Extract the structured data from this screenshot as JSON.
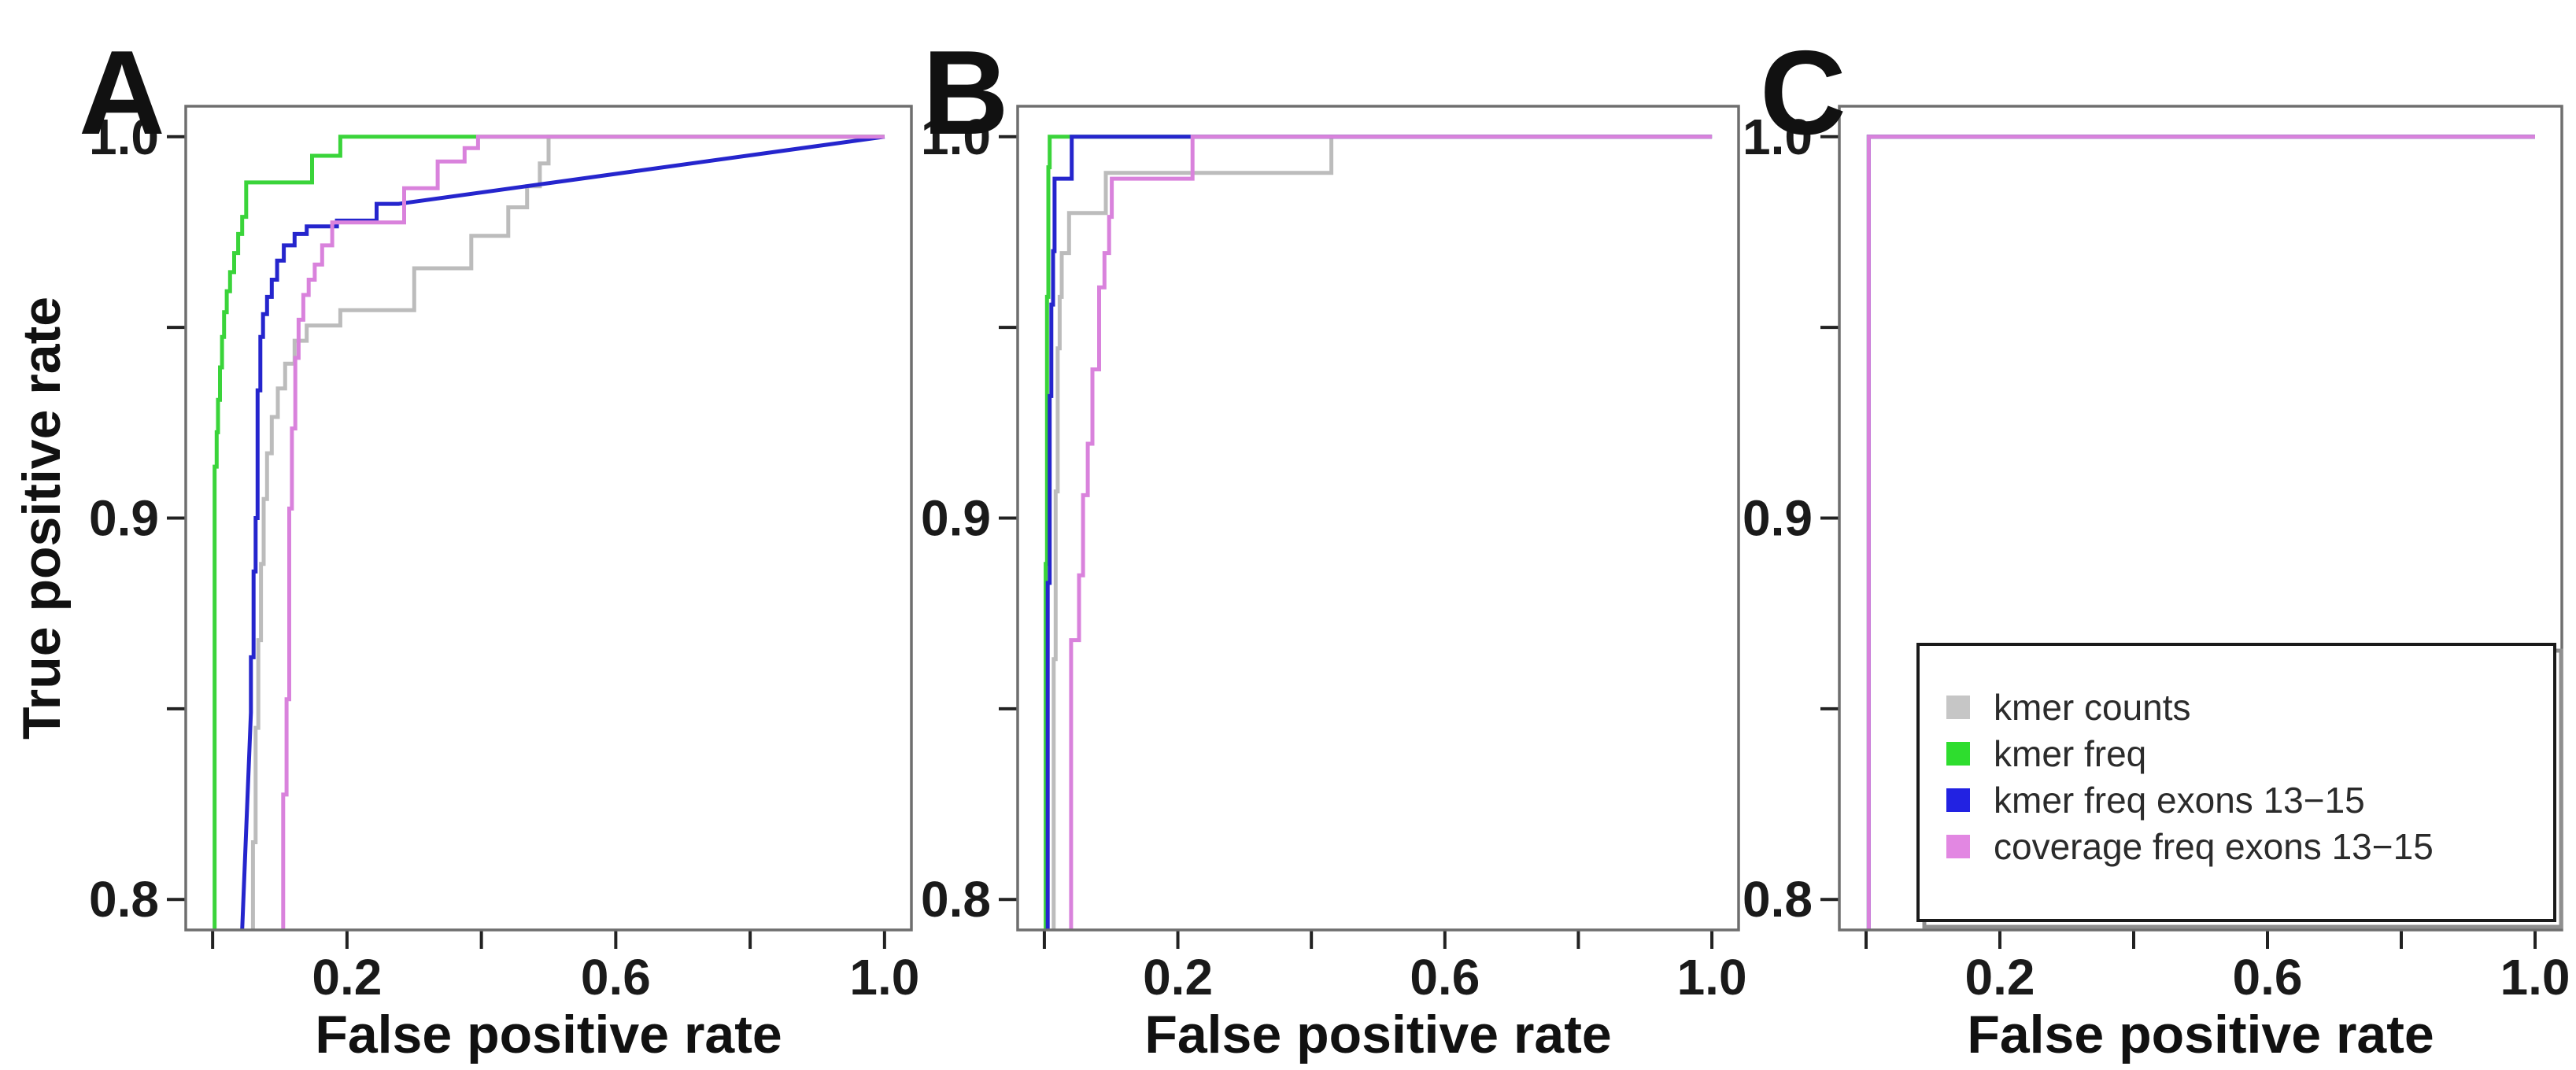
{
  "figure": {
    "x_axis_title": "False positive rate",
    "y_axis_title": "True positive rate",
    "panel_letters": [
      "A",
      "B",
      "C"
    ]
  },
  "colors": {
    "kmer_counts": "#bcbcbc",
    "kmer_freq": "#3ad43a",
    "kmer_freq_exons": "#2525cd",
    "coverage_freq_exons": "#d982dc",
    "frame": "#6e6e6e",
    "tick": "#222222",
    "text": "#111111",
    "legend_border": "#1a1a1a",
    "legend_shadow": "#8f8f8f",
    "background": "#ffffff"
  },
  "legend": {
    "position": "bottom-right-panel-C",
    "items": [
      {
        "key": "kmer_counts",
        "label": "kmer counts",
        "swatch": "#c6c6c6"
      },
      {
        "key": "kmer_freq",
        "label": "kmer freq",
        "swatch": "#2edd2e"
      },
      {
        "key": "kmer_freq_exons",
        "label": "kmer freq exons 13−15",
        "swatch": "#2222e2"
      },
      {
        "key": "coverage_freq_exons",
        "label": "coverage freq exons 13−15",
        "swatch": "#e287e2"
      }
    ]
  },
  "chart_data": [
    {
      "type": "line",
      "panel_letter": "A",
      "xlabel": "False positive rate",
      "ylabel": "True positive rate",
      "xlim": [
        0,
        1
      ],
      "ylim": [
        0.8,
        1.0
      ],
      "grid": false,
      "x_ticks": {
        "labels": [
          "0.2",
          "0.6",
          "1.0"
        ],
        "labeled_values": [
          0.2,
          0.6,
          1.0
        ],
        "minor_values": [
          0.0,
          0.4,
          0.8
        ]
      },
      "y_ticks": {
        "labels": [
          "1.0",
          "0.9",
          "0.8"
        ],
        "labeled_values": [
          1.0,
          0.9,
          0.8
        ],
        "minor_values": [
          0.95,
          0.85
        ]
      },
      "series": [
        {
          "name": "kmer counts",
          "color_key": "kmer_counts",
          "points": [
            [
              0.06,
              0.788
            ],
            [
              0.06,
              0.815
            ],
            [
              0.064,
              0.815
            ],
            [
              0.064,
              0.845
            ],
            [
              0.068,
              0.845
            ],
            [
              0.068,
              0.868
            ],
            [
              0.072,
              0.868
            ],
            [
              0.072,
              0.888
            ],
            [
              0.076,
              0.888
            ],
            [
              0.076,
              0.905
            ],
            [
              0.081,
              0.905
            ],
            [
              0.081,
              0.917
            ],
            [
              0.088,
              0.917
            ],
            [
              0.088,
              0.9265
            ],
            [
              0.097,
              0.9265
            ],
            [
              0.097,
              0.934
            ],
            [
              0.108,
              0.934
            ],
            [
              0.108,
              0.9405
            ],
            [
              0.122,
              0.9405
            ],
            [
              0.122,
              0.9465
            ],
            [
              0.14,
              0.9465
            ],
            [
              0.14,
              0.9505
            ],
            [
              0.19,
              0.9505
            ],
            [
              0.19,
              0.9545
            ],
            [
              0.3,
              0.9545
            ],
            [
              0.3,
              0.9655
            ],
            [
              0.385,
              0.9655
            ],
            [
              0.385,
              0.974
            ],
            [
              0.44,
              0.974
            ],
            [
              0.44,
              0.9815
            ],
            [
              0.468,
              0.9815
            ],
            [
              0.468,
              0.987
            ],
            [
              0.487,
              0.987
            ],
            [
              0.487,
              0.993
            ],
            [
              0.5,
              0.993
            ],
            [
              0.5,
              1.0
            ],
            [
              1.0,
              1.0
            ]
          ]
        },
        {
          "name": "kmer freq",
          "color_key": "kmer_freq",
          "points": [
            [
              0.003,
              0.788
            ],
            [
              0.003,
              0.9135
            ],
            [
              0.006,
              0.9135
            ],
            [
              0.006,
              0.9225
            ],
            [
              0.008,
              0.9225
            ],
            [
              0.008,
              0.931
            ],
            [
              0.011,
              0.931
            ],
            [
              0.011,
              0.9395
            ],
            [
              0.014,
              0.9395
            ],
            [
              0.014,
              0.9475
            ],
            [
              0.017,
              0.9475
            ],
            [
              0.017,
              0.954
            ],
            [
              0.021,
              0.954
            ],
            [
              0.021,
              0.9595
            ],
            [
              0.026,
              0.9595
            ],
            [
              0.026,
              0.9645
            ],
            [
              0.032,
              0.9645
            ],
            [
              0.032,
              0.9695
            ],
            [
              0.038,
              0.9695
            ],
            [
              0.038,
              0.9745
            ],
            [
              0.044,
              0.9745
            ],
            [
              0.044,
              0.979
            ],
            [
              0.05,
              0.979
            ],
            [
              0.05,
              0.988
            ],
            [
              0.148,
              0.988
            ],
            [
              0.148,
              0.995
            ],
            [
              0.19,
              0.995
            ],
            [
              0.19,
              1.0
            ],
            [
              1.0,
              1.0
            ]
          ]
        },
        {
          "name": "kmer freq exons 13-15",
          "color_key": "kmer_freq_exons",
          "points": [
            [
              0.043,
              0.788
            ],
            [
              0.057,
              0.849
            ],
            [
              0.057,
              0.8635
            ],
            [
              0.061,
              0.8635
            ],
            [
              0.061,
              0.886
            ],
            [
              0.064,
              0.886
            ],
            [
              0.064,
              0.9
            ],
            [
              0.067,
              0.9
            ],
            [
              0.067,
              0.9335
            ],
            [
              0.071,
              0.9335
            ],
            [
              0.071,
              0.9475
            ],
            [
              0.075,
              0.9475
            ],
            [
              0.075,
              0.9535
            ],
            [
              0.081,
              0.9535
            ],
            [
              0.081,
              0.958
            ],
            [
              0.088,
              0.958
            ],
            [
              0.088,
              0.9625
            ],
            [
              0.096,
              0.9625
            ],
            [
              0.096,
              0.9675
            ],
            [
              0.106,
              0.9675
            ],
            [
              0.106,
              0.9715
            ],
            [
              0.122,
              0.9715
            ],
            [
              0.122,
              0.9745
            ],
            [
              0.14,
              0.9745
            ],
            [
              0.14,
              0.9765
            ],
            [
              0.185,
              0.9765
            ],
            [
              0.185,
              0.978
            ],
            [
              0.244,
              0.978
            ],
            [
              0.244,
              0.9824
            ],
            [
              0.277,
              0.9824
            ],
            [
              1.0,
              1.0
            ]
          ]
        },
        {
          "name": "coverage freq exons 13-15",
          "color_key": "coverage_freq_exons",
          "points": [
            [
              0.105,
              0.788
            ],
            [
              0.105,
              0.8275
            ],
            [
              0.11,
              0.8275
            ],
            [
              0.11,
              0.8525
            ],
            [
              0.114,
              0.8525
            ],
            [
              0.114,
              0.9025
            ],
            [
              0.118,
              0.9025
            ],
            [
              0.118,
              0.9235
            ],
            [
              0.123,
              0.9235
            ],
            [
              0.123,
              0.942
            ],
            [
              0.128,
              0.942
            ],
            [
              0.128,
              0.952
            ],
            [
              0.135,
              0.952
            ],
            [
              0.135,
              0.9585
            ],
            [
              0.143,
              0.9585
            ],
            [
              0.143,
              0.9625
            ],
            [
              0.152,
              0.9625
            ],
            [
              0.152,
              0.9665
            ],
            [
              0.163,
              0.9665
            ],
            [
              0.163,
              0.9715
            ],
            [
              0.178,
              0.9715
            ],
            [
              0.178,
              0.9775
            ],
            [
              0.285,
              0.9775
            ],
            [
              0.285,
              0.9865
            ],
            [
              0.335,
              0.9865
            ],
            [
              0.335,
              0.9935
            ],
            [
              0.375,
              0.9935
            ],
            [
              0.375,
              0.997
            ],
            [
              0.395,
              0.997
            ],
            [
              0.395,
              1.0
            ],
            [
              1.0,
              1.0
            ]
          ]
        }
      ]
    },
    {
      "type": "line",
      "panel_letter": "B",
      "xlabel": "False positive rate",
      "ylabel": "",
      "xlim": [
        0,
        1
      ],
      "ylim": [
        0.8,
        1.0
      ],
      "grid": false,
      "x_ticks": {
        "labels": [
          "0.2",
          "0.6",
          "1.0"
        ],
        "labeled_values": [
          0.2,
          0.6,
          1.0
        ],
        "minor_values": [
          0.0,
          0.4,
          0.8
        ]
      },
      "y_ticks": {
        "labels": [
          "1.0",
          "0.9",
          "0.8"
        ],
        "labeled_values": [
          1.0,
          0.9,
          0.8
        ],
        "minor_values": [
          0.95,
          0.85
        ]
      },
      "series": [
        {
          "name": "kmer counts",
          "color_key": "kmer_counts",
          "points": [
            [
              0.014,
              0.788
            ],
            [
              0.014,
              0.863
            ],
            [
              0.017,
              0.863
            ],
            [
              0.017,
              0.907
            ],
            [
              0.02,
              0.907
            ],
            [
              0.02,
              0.9445
            ],
            [
              0.023,
              0.9445
            ],
            [
              0.023,
              0.958
            ],
            [
              0.026,
              0.958
            ],
            [
              0.026,
              0.9695
            ],
            [
              0.037,
              0.9695
            ],
            [
              0.037,
              0.98
            ],
            [
              0.092,
              0.98
            ],
            [
              0.092,
              0.9905
            ],
            [
              0.43,
              0.9905
            ],
            [
              0.43,
              1.0
            ],
            [
              1.0,
              1.0
            ]
          ]
        },
        {
          "name": "kmer freq",
          "color_key": "kmer_freq",
          "points": [
            [
              0.002,
              0.788
            ],
            [
              0.002,
              0.888
            ],
            [
              0.004,
              0.888
            ],
            [
              0.004,
              0.958
            ],
            [
              0.006,
              0.958
            ],
            [
              0.006,
              0.992
            ],
            [
              0.008,
              0.992
            ],
            [
              0.008,
              1.0
            ],
            [
              1.0,
              1.0
            ]
          ]
        },
        {
          "name": "kmer freq exons 13-15",
          "color_key": "kmer_freq_exons",
          "points": [
            [
              0.005,
              0.788
            ],
            [
              0.005,
              0.883
            ],
            [
              0.008,
              0.883
            ],
            [
              0.008,
              0.932
            ],
            [
              0.0105,
              0.932
            ],
            [
              0.0105,
              0.956
            ],
            [
              0.013,
              0.956
            ],
            [
              0.013,
              0.97
            ],
            [
              0.0153,
              0.97
            ],
            [
              0.0153,
              0.989
            ],
            [
              0.041,
              0.989
            ],
            [
              0.041,
              1.0
            ],
            [
              1.0,
              1.0
            ]
          ]
        },
        {
          "name": "coverage freq exons 13-15",
          "color_key": "coverage_freq_exons",
          "points": [
            [
              0.04,
              0.788
            ],
            [
              0.04,
              0.868
            ],
            [
              0.052,
              0.868
            ],
            [
              0.052,
              0.885
            ],
            [
              0.058,
              0.885
            ],
            [
              0.058,
              0.906
            ],
            [
              0.065,
              0.906
            ],
            [
              0.065,
              0.9195
            ],
            [
              0.072,
              0.9195
            ],
            [
              0.072,
              0.939
            ],
            [
              0.082,
              0.939
            ],
            [
              0.082,
              0.9605
            ],
            [
              0.09,
              0.9605
            ],
            [
              0.09,
              0.9695
            ],
            [
              0.097,
              0.9695
            ],
            [
              0.097,
              0.979
            ],
            [
              0.101,
              0.979
            ],
            [
              0.101,
              0.989
            ],
            [
              0.222,
              0.989
            ],
            [
              0.222,
              1.0
            ],
            [
              1.0,
              1.0
            ]
          ]
        }
      ]
    },
    {
      "type": "line",
      "panel_letter": "C",
      "xlabel": "False positive rate",
      "ylabel": "",
      "xlim": [
        0,
        1
      ],
      "ylim": [
        0.8,
        1.0
      ],
      "grid": false,
      "note": "All four classifiers overlap exactly (perfect step ROC); only the last-drawn series is visible.",
      "x_ticks": {
        "labels": [
          "0.2",
          "0.6",
          "1.0"
        ],
        "labeled_values": [
          0.2,
          0.6,
          1.0
        ],
        "minor_values": [
          0.0,
          0.4,
          0.8
        ]
      },
      "y_ticks": {
        "labels": [
          "1.0",
          "0.9",
          "0.8"
        ],
        "labeled_values": [
          1.0,
          0.9,
          0.8
        ],
        "minor_values": [
          0.95,
          0.85
        ]
      },
      "series": [
        {
          "name": "kmer counts",
          "color_key": "kmer_counts",
          "points": [
            [
              0.004,
              0.788
            ],
            [
              0.004,
              1.0
            ],
            [
              1.0,
              1.0
            ]
          ]
        },
        {
          "name": "kmer freq",
          "color_key": "kmer_freq",
          "points": [
            [
              0.004,
              0.788
            ],
            [
              0.004,
              1.0
            ],
            [
              1.0,
              1.0
            ]
          ]
        },
        {
          "name": "kmer freq exons 13-15",
          "color_key": "kmer_freq_exons",
          "points": [
            [
              0.004,
              0.788
            ],
            [
              0.004,
              1.0
            ],
            [
              1.0,
              1.0
            ]
          ]
        },
        {
          "name": "coverage freq exons 13-15",
          "color_key": "coverage_freq_exons",
          "points": [
            [
              0.004,
              0.788
            ],
            [
              0.004,
              1.0
            ],
            [
              1.0,
              1.0
            ]
          ]
        }
      ]
    }
  ]
}
